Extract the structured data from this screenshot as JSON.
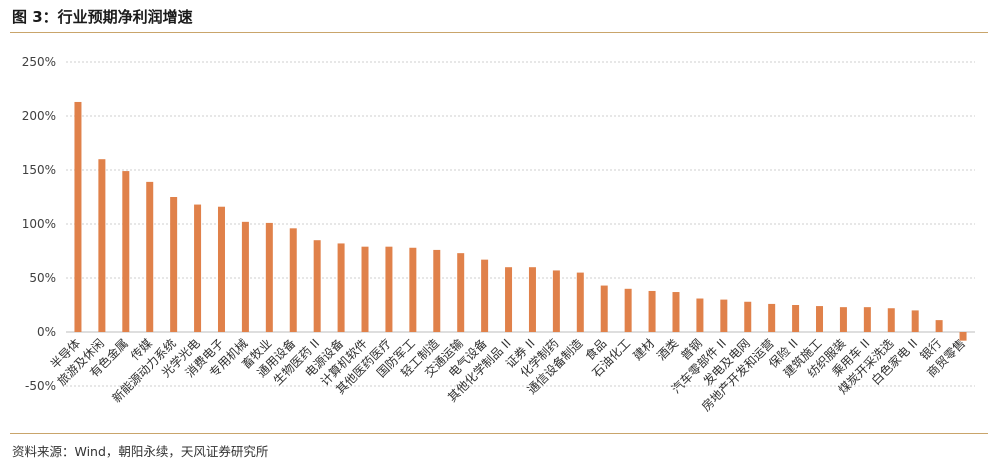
{
  "figure": {
    "title": "图 3：行业预期净利润增速",
    "source": "资料来源：Wind，朝阳永续，天风证券研究所"
  },
  "chart_data": {
    "type": "bar",
    "title": "",
    "xlabel": "",
    "ylabel": "",
    "ylim": [
      -50,
      250
    ],
    "yticks": [
      -50,
      0,
      50,
      100,
      150,
      200,
      250
    ],
    "ytick_labels": [
      "-50%",
      "0%",
      "50%",
      "100%",
      "150%",
      "200%",
      "250%"
    ],
    "grid": true,
    "legend": "none",
    "bar_color": "#E0814A",
    "categories": [
      "半导体",
      "旅游及休闲",
      "有色金属",
      "传媒",
      "新能源动力系统",
      "光学光电",
      "消费电子",
      "专用机械",
      "畜牧业",
      "通用设备",
      "生物医药 II",
      "电源设备",
      "计算机软件",
      "其他医药医疗",
      "国防军工",
      "轻工制造",
      "交通运输",
      "电气设备",
      "其他化学制品 II",
      "证券 II",
      "化学制药",
      "通信设备制造",
      "食品",
      "石油化工",
      "建材",
      "酒类",
      "普钢",
      "汽车零部件 II",
      "发电及电网",
      "房地产开发和运营",
      "保险 II",
      "建筑施工",
      "纺织服装",
      "乘用车 II",
      "煤炭开采洗选",
      "白色家电 II",
      "银行",
      "商贸零售"
    ],
    "values": [
      213,
      160,
      149,
      139,
      125,
      118,
      116,
      102,
      101,
      96,
      85,
      82,
      79,
      79,
      78,
      76,
      73,
      67,
      60,
      60,
      57,
      55,
      43,
      40,
      38,
      37,
      31,
      30,
      28,
      26,
      25,
      24,
      23,
      23,
      22,
      20,
      11,
      -8
    ]
  }
}
